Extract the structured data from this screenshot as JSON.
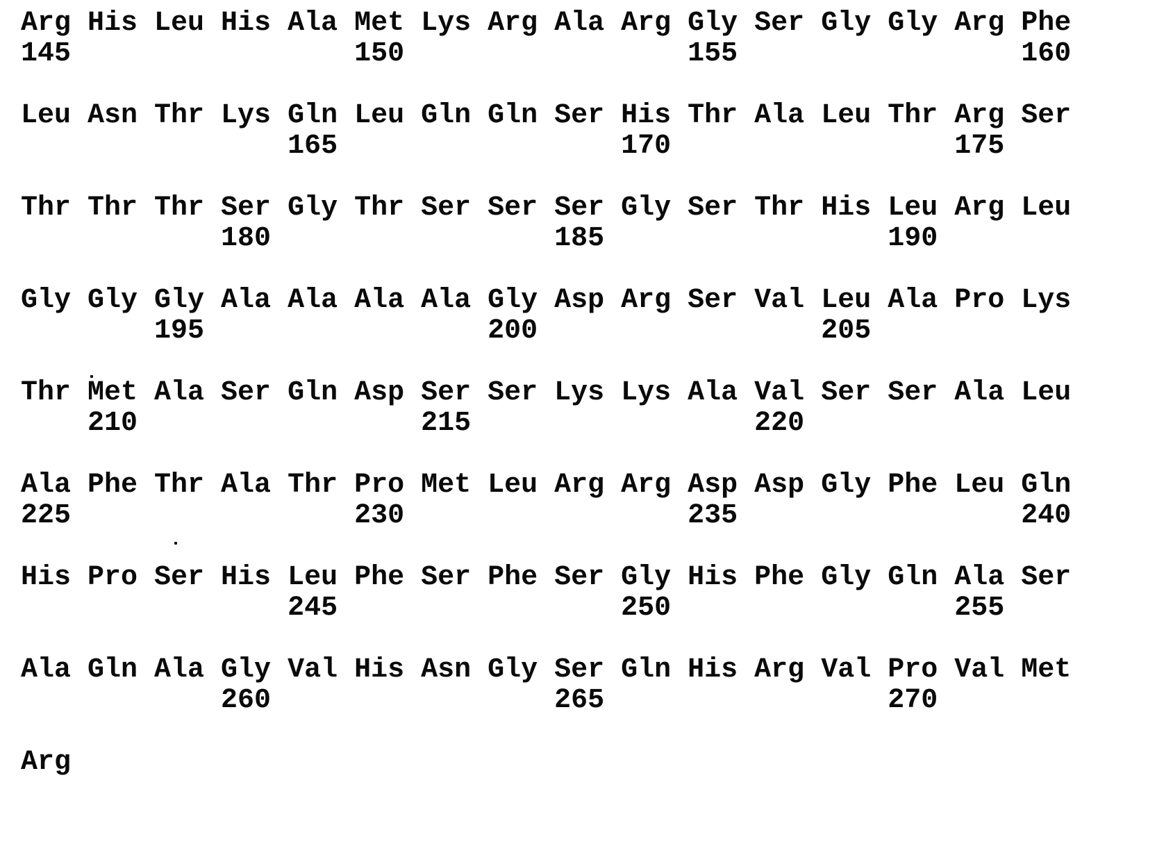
{
  "page": {
    "background": "#ffffff",
    "text_color": "#0a0a0a"
  },
  "sequence": {
    "rows": [
      {
        "residues": [
          "Arg",
          "His",
          "Leu",
          "His",
          "Ala",
          "Met",
          "Lys",
          "Arg",
          "Ala",
          "Arg",
          "Gly",
          "Ser",
          "Gly",
          "Gly",
          "Arg",
          "Phe"
        ],
        "numbers": [
          {
            "label": "145",
            "index": 0
          },
          {
            "label": "150",
            "index": 5
          },
          {
            "label": "155",
            "index": 10
          },
          {
            "label": "160",
            "index": 15
          }
        ]
      },
      {
        "residues": [
          "Leu",
          "Asn",
          "Thr",
          "Lys",
          "Gln",
          "Leu",
          "Gln",
          "Gln",
          "Ser",
          "His",
          "Thr",
          "Ala",
          "Leu",
          "Thr",
          "Arg",
          "Ser"
        ],
        "numbers": [
          {
            "label": "165",
            "index": 4
          },
          {
            "label": "170",
            "index": 9
          },
          {
            "label": "175",
            "index": 14
          }
        ]
      },
      {
        "residues": [
          "Thr",
          "Thr",
          "Thr",
          "Ser",
          "Gly",
          "Thr",
          "Ser",
          "Ser",
          "Ser",
          "Gly",
          "Ser",
          "Thr",
          "His",
          "Leu",
          "Arg",
          "Leu"
        ],
        "numbers": [
          {
            "label": "180",
            "index": 3
          },
          {
            "label": "185",
            "index": 8
          },
          {
            "label": "190",
            "index": 13
          }
        ]
      },
      {
        "residues": [
          "Gly",
          "Gly",
          "Gly",
          "Ala",
          "Ala",
          "Ala",
          "Ala",
          "Gly",
          "Asp",
          "Arg",
          "Ser",
          "Val",
          "Leu",
          "Ala",
          "Pro",
          "Lys"
        ],
        "numbers": [
          {
            "label": "195",
            "index": 2
          },
          {
            "label": "200",
            "index": 7
          },
          {
            "label": "205",
            "index": 12
          }
        ]
      },
      {
        "residues": [
          "Thr",
          "Met",
          "Ala",
          "Ser",
          "Gln",
          "Asp",
          "Ser",
          "Ser",
          "Lys",
          "Lys",
          "Ala",
          "Val",
          "Ser",
          "Ser",
          "Ala",
          "Leu"
        ],
        "numbers": [
          {
            "label": "210",
            "index": 1
          },
          {
            "label": "215",
            "index": 6
          },
          {
            "label": "220",
            "index": 11
          }
        ]
      },
      {
        "residues": [
          "Ala",
          "Phe",
          "Thr",
          "Ala",
          "Thr",
          "Pro",
          "Met",
          "Leu",
          "Arg",
          "Arg",
          "Asp",
          "Asp",
          "Gly",
          "Phe",
          "Leu",
          "Gln"
        ],
        "numbers": [
          {
            "label": "225",
            "index": 0
          },
          {
            "label": "230",
            "index": 5
          },
          {
            "label": "235",
            "index": 10
          },
          {
            "label": "240",
            "index": 15
          }
        ]
      },
      {
        "residues": [
          "His",
          "Pro",
          "Ser",
          "His",
          "Leu",
          "Phe",
          "Ser",
          "Phe",
          "Ser",
          "Gly",
          "His",
          "Phe",
          "Gly",
          "Gln",
          "Ala",
          "Ser"
        ],
        "numbers": [
          {
            "label": "245",
            "index": 4
          },
          {
            "label": "250",
            "index": 9
          },
          {
            "label": "255",
            "index": 14
          }
        ]
      },
      {
        "residues": [
          "Ala",
          "Gln",
          "Ala",
          "Gly",
          "Val",
          "His",
          "Asn",
          "Gly",
          "Ser",
          "Gln",
          "His",
          "Arg",
          "Val",
          "Pro",
          "Val",
          "Met"
        ],
        "numbers": [
          {
            "label": "260",
            "index": 3
          },
          {
            "label": "265",
            "index": 8
          },
          {
            "label": "270",
            "index": 13
          }
        ]
      },
      {
        "residues": [
          "Arg"
        ],
        "numbers": []
      }
    ]
  }
}
